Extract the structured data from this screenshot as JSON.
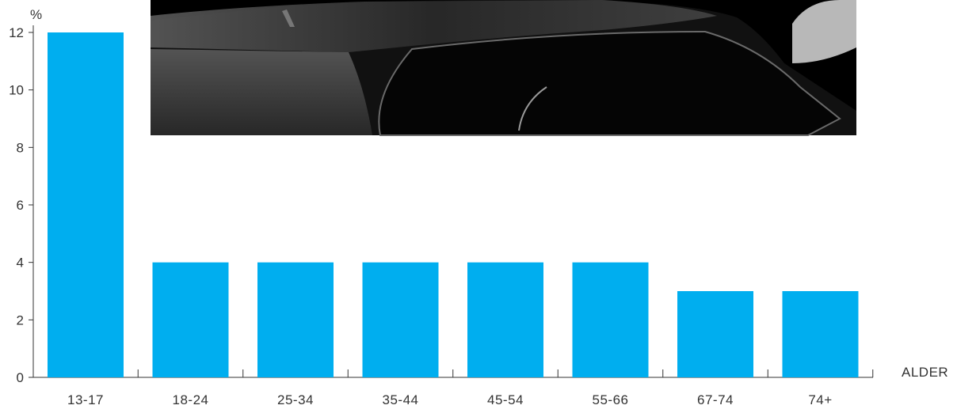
{
  "chart_data": {
    "type": "bar",
    "title": "",
    "xlabel": "ALDER",
    "ylabel": "%",
    "ylim": [
      0,
      12
    ],
    "yticks": [
      0,
      2,
      4,
      6,
      8,
      10,
      12
    ],
    "categories": [
      "13-17",
      "18-24",
      "25-34",
      "35-44",
      "45-54",
      "55-66",
      "67-74",
      "74+"
    ],
    "values": [
      12,
      4,
      4,
      4,
      4,
      4,
      3,
      3
    ],
    "colors": {
      "bar": "#00aeef",
      "axis": "#333333",
      "text": "#333333"
    },
    "grid": false,
    "background_image": "dark car roof photo (decorative)"
  }
}
